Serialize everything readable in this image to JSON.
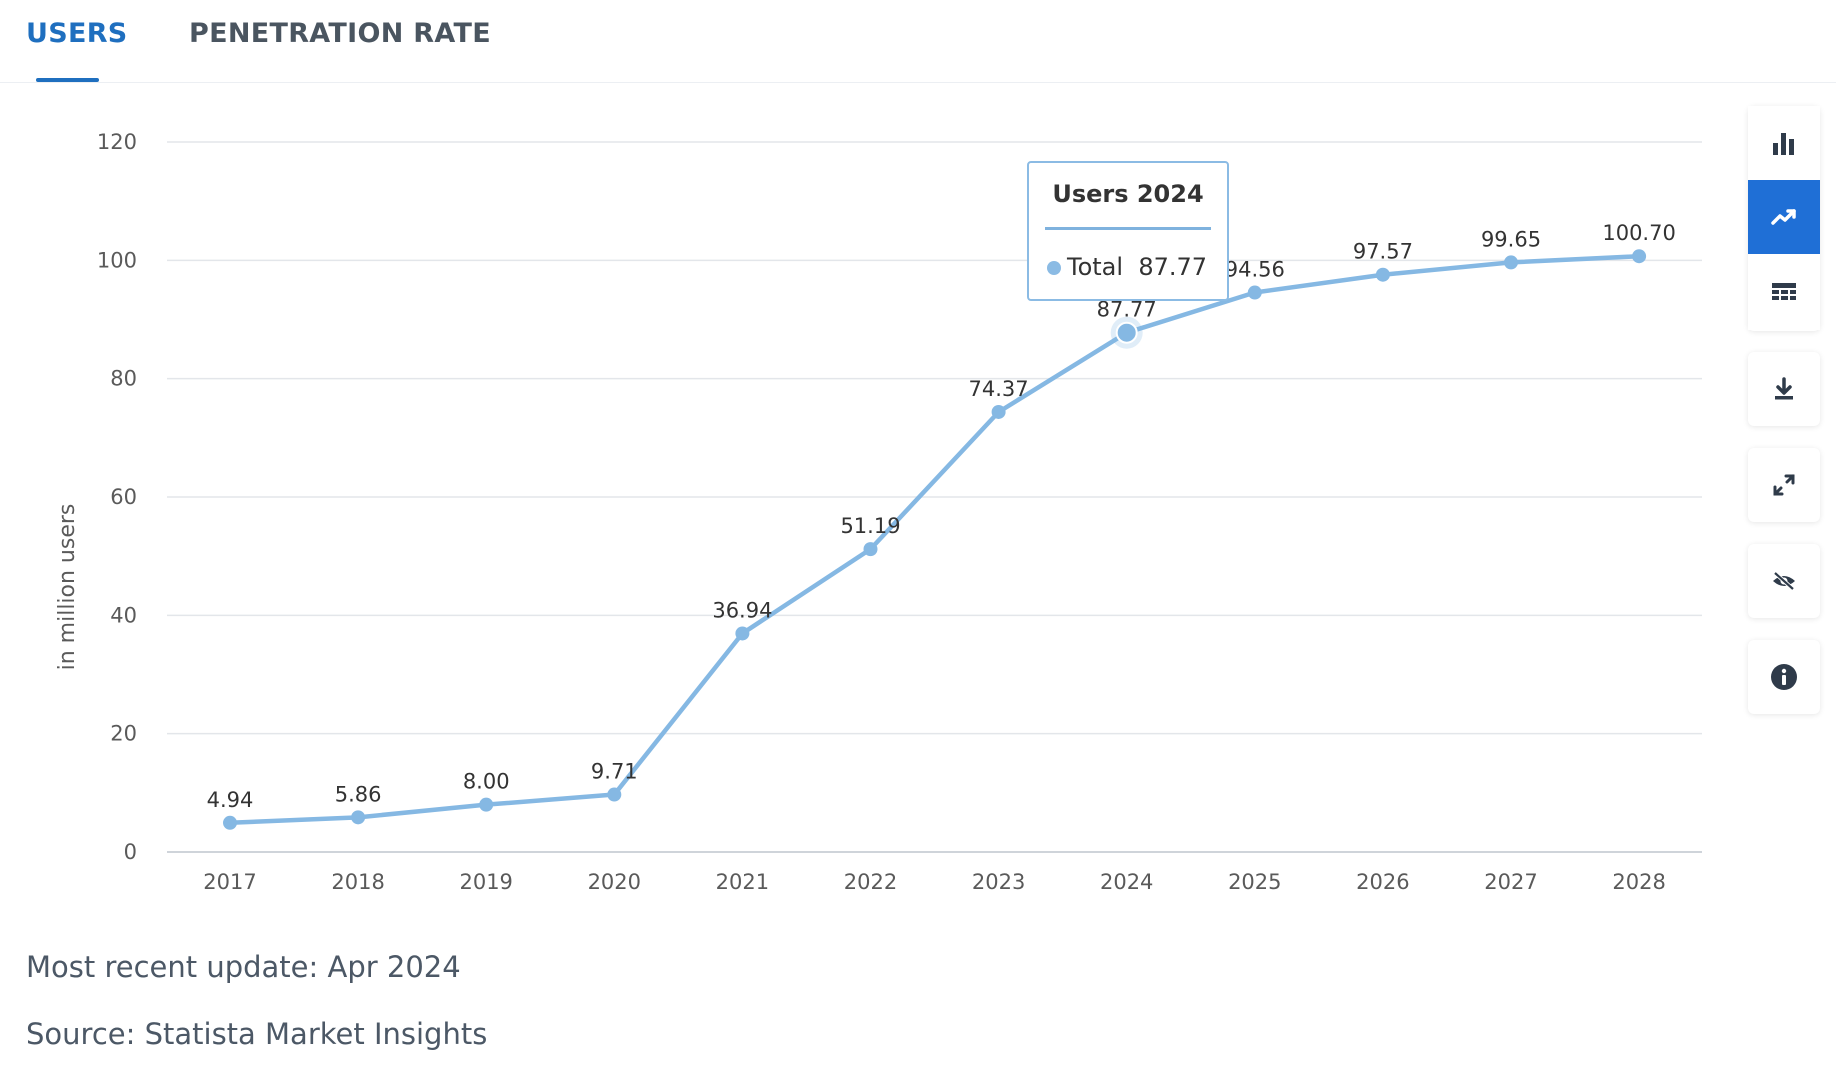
{
  "tabs": {
    "users": "USERS",
    "penetration": "PENETRATION RATE"
  },
  "tooltip": {
    "title": "Users 2024",
    "series": "Total",
    "value": "87.77"
  },
  "footer": {
    "update": "Most recent update: Apr 2024",
    "source": "Source: Statista Market Insights"
  },
  "toolbar": {
    "icons": [
      "bar-chart-icon",
      "line-chart-icon",
      "table-icon",
      "download-icon",
      "fullscreen-icon",
      "hide-icon",
      "info-icon"
    ],
    "active": "line-chart-icon",
    "active_color": "#1f6fd6"
  },
  "chart_data": {
    "type": "line",
    "categories": [
      "2017",
      "2018",
      "2019",
      "2020",
      "2021",
      "2022",
      "2023",
      "2024",
      "2025",
      "2026",
      "2027",
      "2028"
    ],
    "series": [
      {
        "values": [
          4.94,
          5.86,
          8.0,
          9.71,
          36.94,
          51.19,
          74.37,
          87.77,
          94.56,
          97.57,
          99.65,
          100.7
        ],
        "labels": [
          "4.94",
          "5.86",
          "8.00",
          "9.71",
          "36.94",
          "51.19",
          "74.37",
          "87.77",
          "94.56",
          "97.57",
          "99.65",
          "100.70"
        ],
        "color": "#85b8e3"
      }
    ],
    "ylabel": "in million users",
    "ylim": [
      0,
      120
    ],
    "yticks": [
      0,
      20,
      40,
      60,
      80,
      100,
      120
    ],
    "grid": true,
    "highlighted": "2024"
  }
}
